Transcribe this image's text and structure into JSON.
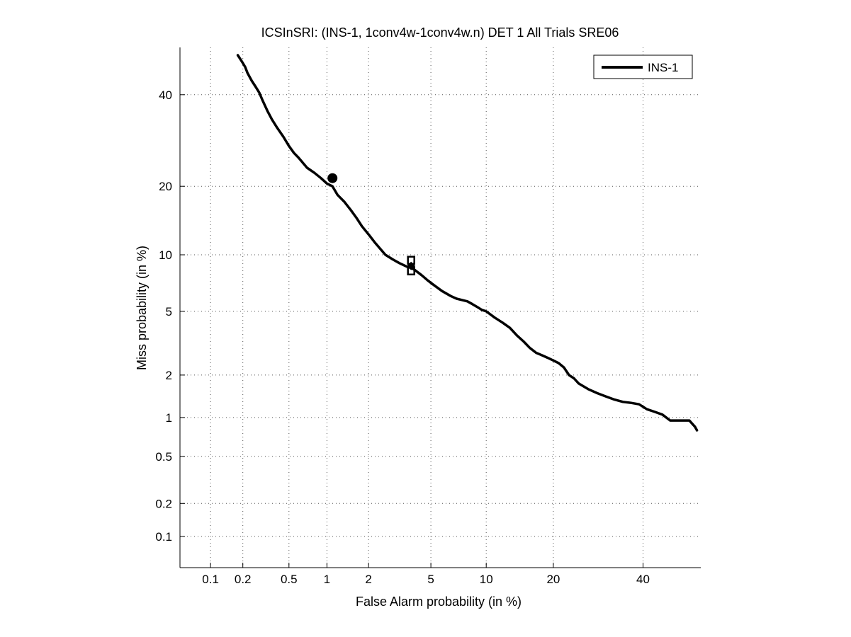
{
  "chart_data": {
    "type": "line",
    "title": "ICSInSRI: (INS-1, 1conv4w-1conv4w.n) DET 1 All Trials SRE06",
    "xlabel": "False Alarm probability (in %)",
    "ylabel": "Miss probability (in %)",
    "scale": "normal-deviate (probit) on both axes",
    "xlim": [
      0.05,
      55
    ],
    "ylim": [
      0.05,
      52
    ],
    "xticks": [
      0.1,
      0.2,
      0.5,
      1,
      2,
      5,
      10,
      20,
      40
    ],
    "xtick_labels": [
      "0.1",
      "0.2",
      "0.5",
      "1",
      "2",
      "5",
      "10",
      "20",
      "40"
    ],
    "yticks": [
      0.1,
      0.2,
      0.5,
      1,
      2,
      5,
      10,
      20,
      40
    ],
    "ytick_labels": [
      "0.1",
      "0.2",
      "0.5",
      "1",
      "2",
      "5",
      "10",
      "20",
      "40"
    ],
    "grid": "dotted",
    "legend_position": "top-right",
    "series": [
      {
        "name": "INS-1",
        "color": "#000000",
        "x": [
          0.18,
          0.19,
          0.2,
          0.21,
          0.22,
          0.24,
          0.26,
          0.28,
          0.3,
          0.33,
          0.36,
          0.4,
          0.45,
          0.5,
          0.55,
          0.6,
          0.7,
          0.8,
          0.9,
          1.0,
          1.1,
          1.2,
          1.35,
          1.5,
          1.65,
          1.8,
          2.0,
          2.2,
          2.4,
          2.6,
          2.9,
          3.2,
          3.6,
          3.8,
          4.0,
          4.4,
          4.8,
          5.2,
          5.8,
          6.5,
          7.0,
          7.5,
          8.0,
          8.5,
          9.0,
          9.5,
          10.0,
          11.0,
          12.0,
          13.0,
          14.0,
          15.0,
          16.0,
          17.0,
          18.0,
          19.0,
          20.0,
          21.0,
          22.0,
          23.0,
          24.0,
          25.0,
          27.0,
          29.0,
          31.0,
          33.0,
          35.0,
          37.0,
          39.0,
          41.0,
          43.0,
          45.0,
          47.0,
          50.0,
          52.0,
          53.5,
          54.0
        ],
        "y": [
          50.0,
          49.0,
          48.0,
          47.0,
          45.5,
          43.5,
          42.0,
          40.5,
          38.5,
          36.0,
          34.0,
          32.0,
          30.0,
          28.0,
          26.5,
          25.5,
          23.5,
          22.5,
          21.5,
          20.5,
          20.0,
          18.5,
          17.3,
          16.0,
          14.8,
          13.6,
          12.5,
          11.5,
          10.7,
          10.0,
          9.5,
          9.1,
          8.7,
          8.6,
          8.4,
          7.9,
          7.4,
          7.0,
          6.5,
          6.1,
          5.9,
          5.8,
          5.7,
          5.5,
          5.3,
          5.1,
          5.0,
          4.6,
          4.3,
          4.0,
          3.6,
          3.3,
          3.0,
          2.8,
          2.7,
          2.6,
          2.5,
          2.4,
          2.25,
          2.0,
          1.9,
          1.75,
          1.6,
          1.5,
          1.42,
          1.35,
          1.3,
          1.28,
          1.25,
          1.15,
          1.1,
          1.05,
          0.95,
          0.95,
          0.95,
          0.85,
          0.8
        ]
      }
    ],
    "markers": [
      {
        "shape": "circle",
        "x": 1.1,
        "y": 21.5
      },
      {
        "shape": "square",
        "x": 3.8,
        "y": 9.4
      },
      {
        "shape": "square",
        "x": 3.8,
        "y": 8.3
      },
      {
        "shape": "diamond",
        "x": 3.8,
        "y": 8.8
      }
    ]
  }
}
